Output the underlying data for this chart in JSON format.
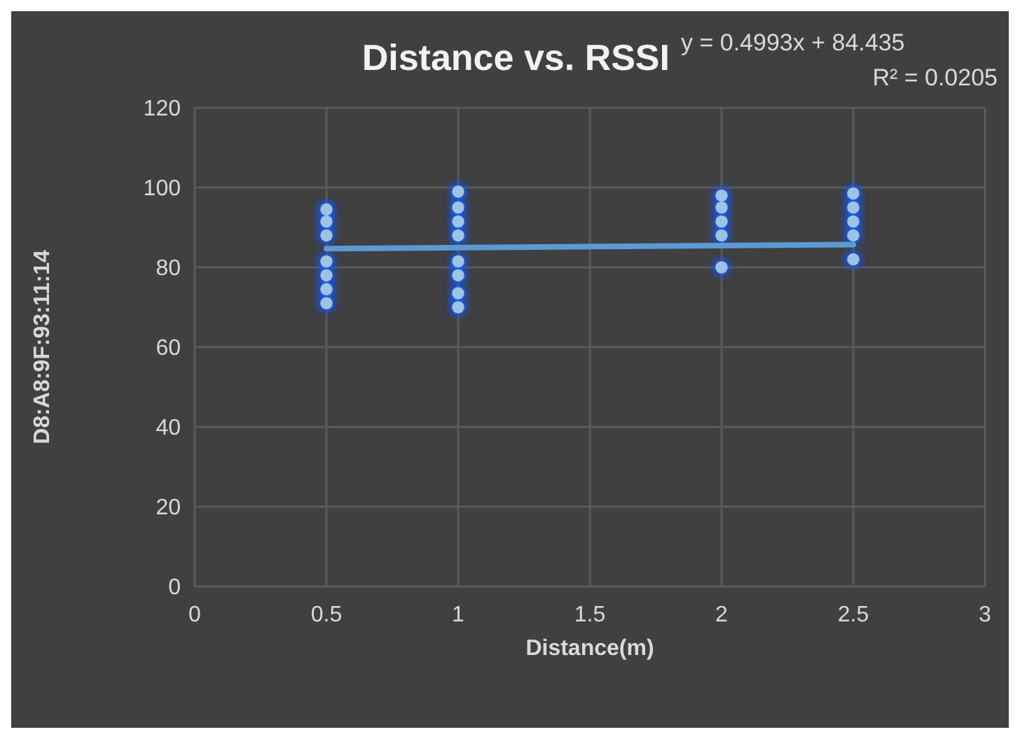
{
  "chart_data": {
    "type": "scatter",
    "title": "Distance vs. RSSI",
    "xlabel": "Distance(m)",
    "ylabel": "D8:A8:9F:93:11:14",
    "annotations": [
      "y = 0.4993x + 84.435",
      "R² = 0.0205"
    ],
    "xlim": [
      0,
      3
    ],
    "xticks": [
      0,
      0.5,
      1,
      1.5,
      2,
      2.5,
      3
    ],
    "ylim": [
      0,
      120
    ],
    "yticks": [
      0,
      20,
      40,
      60,
      80,
      100,
      120
    ],
    "grid": true,
    "series": [
      {
        "marker": "circle",
        "color": "#9dc3e6",
        "x": [
          0.5,
          0.5,
          0.5,
          0.5,
          0.5,
          0.5,
          0.5,
          1,
          1,
          1,
          1,
          1,
          1,
          1,
          1,
          2,
          2,
          2,
          2,
          2,
          2.5,
          2.5,
          2.5,
          2.5,
          2.5
        ],
        "values": [
          71,
          74.5,
          78,
          81.5,
          88,
          91.5,
          94.5,
          70,
          73.5,
          78,
          81.5,
          88,
          91.5,
          95,
          99,
          80,
          88,
          91.5,
          95,
          98,
          82,
          88,
          91.5,
          95,
          98.5
        ]
      },
      {
        "type": "line",
        "color": "#5b9bd5",
        "x": [
          0.5,
          2.5
        ],
        "values": [
          84.7,
          85.7
        ]
      }
    ]
  }
}
